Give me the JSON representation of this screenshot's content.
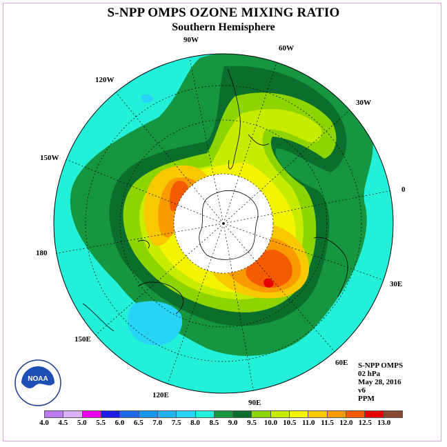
{
  "title": "S-NPP OMPS OZONE MIXING RATIO",
  "subtitle": "Southern Hemisphere",
  "longitude_labels": {
    "lon_90w": "90W",
    "lon_60w": "60W",
    "lon_30w": "30W",
    "lon_0": "0",
    "lon_30e": "30E",
    "lon_60e": "60E",
    "lon_90e": "90E",
    "lon_120e": "120E",
    "lon_150e": "150E",
    "lon_180": "180",
    "lon_150w": "150W",
    "lon_120w": "120W"
  },
  "info": {
    "instrument": "S-NPP OMPS",
    "level": "02 hPa",
    "date": "May 28, 2016",
    "version": "v6",
    "units": "PPM"
  },
  "logo": {
    "text": "NOAA"
  },
  "colorbar": {
    "levels": [
      "4.0",
      "4.5",
      "5.0",
      "5.5",
      "6.0",
      "6.5",
      "7.0",
      "7.5",
      "8.0",
      "8.5",
      "9.0",
      "9.5",
      "10.0",
      "10.5",
      "11.0",
      "11.5",
      "12.0",
      "12.5",
      "13.0"
    ],
    "colors": [
      "#b87cf0",
      "#dcb2f6",
      "#f000f0",
      "#1c1ce6",
      "#1a6ae6",
      "#1a96f0",
      "#22b4f2",
      "#28d4f6",
      "#22f0d8",
      "#169640",
      "#0b6e2c",
      "#8ed400",
      "#c8ec00",
      "#f4f400",
      "#f8c800",
      "#f89a00",
      "#f45a00",
      "#e80000",
      "#8a4a32"
    ]
  }
}
